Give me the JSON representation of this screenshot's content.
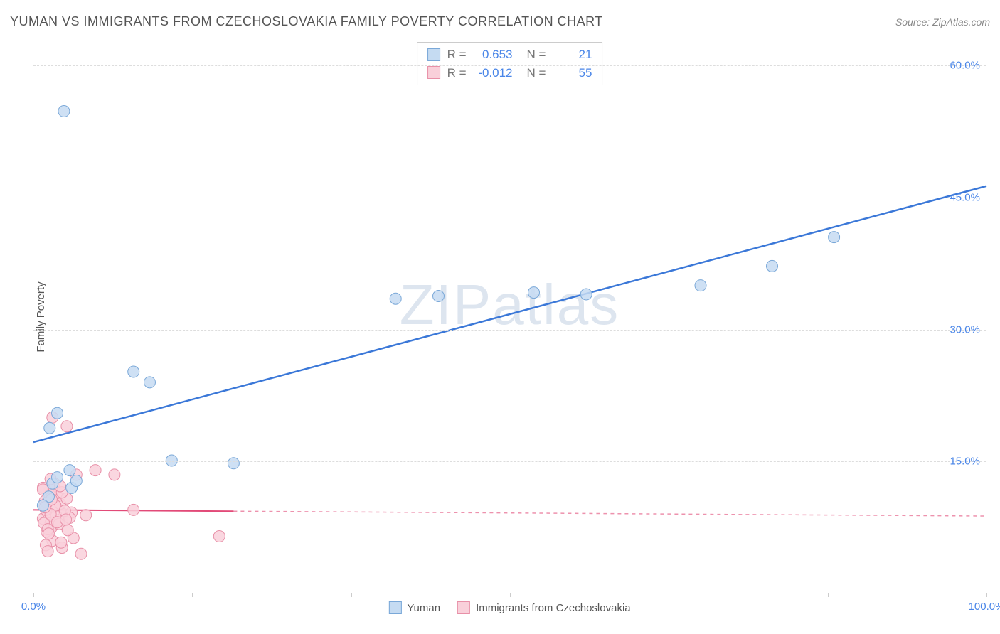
{
  "title": "YUMAN VS IMMIGRANTS FROM CZECHOSLOVAKIA FAMILY POVERTY CORRELATION CHART",
  "source": "Source: ZipAtlas.com",
  "ylabel": "Family Poverty",
  "watermark": {
    "left": "ZIP",
    "right": "atlas"
  },
  "chart": {
    "type": "scatter",
    "xlim": [
      0,
      100
    ],
    "ylim": [
      0,
      63
    ],
    "xtick_positions": [
      0,
      16.67,
      33.33,
      50,
      66.67,
      83.33,
      100
    ],
    "xtick_labels": [
      "0.0%",
      "",
      "",
      "",
      "",
      "",
      "100.0%"
    ],
    "ytick_positions": [
      15,
      30,
      45,
      60
    ],
    "ytick_labels": [
      "15.0%",
      "30.0%",
      "45.0%",
      "60.0%"
    ],
    "background_color": "#ffffff",
    "grid_color": "#dddddd",
    "axis_color": "#cccccc",
    "xlabel_color_left": "#4a86e8",
    "xlabel_color_right": "#4a86e8",
    "ytick_color": "#4a86e8",
    "marker_radius": 8,
    "marker_stroke_width": 1,
    "series": [
      {
        "name": "Yuman",
        "color_fill": "#c5dbf2",
        "color_stroke": "#7aa8d8",
        "line_color": "#3b78d8",
        "line_width": 2.5,
        "line_dash": "none",
        "r_value": "0.653",
        "n_value": "21",
        "trend": {
          "x1": 0,
          "y1": 17.2,
          "x2": 100,
          "y2": 46.3
        },
        "solid_trend_xmax": 100,
        "points": [
          [
            3.2,
            54.8
          ],
          [
            1.7,
            18.8
          ],
          [
            2.5,
            20.5
          ],
          [
            10.5,
            25.2
          ],
          [
            12.2,
            24.0
          ],
          [
            2.0,
            12.5
          ],
          [
            4.0,
            12.0
          ],
          [
            4.5,
            12.8
          ],
          [
            1.6,
            11.0
          ],
          [
            1.0,
            10.0
          ],
          [
            14.5,
            15.1
          ],
          [
            21.0,
            14.8
          ],
          [
            38.0,
            33.5
          ],
          [
            42.5,
            33.8
          ],
          [
            52.5,
            34.2
          ],
          [
            58.0,
            34.0
          ],
          [
            70.0,
            35.0
          ],
          [
            77.5,
            37.2
          ],
          [
            84.0,
            40.5
          ],
          [
            2.5,
            13.2
          ],
          [
            3.8,
            14.0
          ]
        ]
      },
      {
        "name": "Immigrants from Czechoslovakia",
        "color_fill": "#f9d0da",
        "color_stroke": "#e890a8",
        "line_color": "#e24a78",
        "line_width": 2,
        "line_dash": "5,5",
        "r_value": "-0.012",
        "n_value": "55",
        "trend": {
          "x1": 0,
          "y1": 9.5,
          "x2": 100,
          "y2": 8.8
        },
        "solid_trend_xmax": 21,
        "points": [
          [
            1.0,
            8.5
          ],
          [
            1.5,
            9.2
          ],
          [
            2.0,
            7.8
          ],
          [
            1.2,
            10.5
          ],
          [
            2.5,
            11.0
          ],
          [
            1.8,
            8.0
          ],
          [
            2.2,
            9.8
          ],
          [
            3.0,
            8.2
          ],
          [
            1.4,
            7.0
          ],
          [
            2.8,
            10.2
          ],
          [
            1.6,
            11.5
          ],
          [
            2.0,
            20.0
          ],
          [
            3.2,
            9.0
          ],
          [
            1.0,
            12.0
          ],
          [
            2.4,
            8.8
          ],
          [
            1.9,
            7.5
          ],
          [
            3.5,
            10.8
          ],
          [
            1.3,
            9.5
          ],
          [
            2.6,
            8.3
          ],
          [
            1.7,
            11.2
          ],
          [
            4.0,
            9.2
          ],
          [
            1.1,
            8.0
          ],
          [
            2.3,
            10.0
          ],
          [
            1.5,
            7.3
          ],
          [
            3.8,
            8.6
          ],
          [
            2.1,
            11.8
          ],
          [
            1.8,
            9.0
          ],
          [
            4.5,
            13.5
          ],
          [
            1.4,
            10.3
          ],
          [
            2.7,
            7.9
          ],
          [
            3.5,
            19.0
          ],
          [
            1.2,
            9.8
          ],
          [
            2.5,
            8.1
          ],
          [
            1.9,
            10.7
          ],
          [
            3.3,
            9.4
          ],
          [
            5.5,
            8.9
          ],
          [
            6.5,
            14.0
          ],
          [
            8.5,
            13.5
          ],
          [
            10.5,
            9.5
          ],
          [
            19.5,
            6.5
          ],
          [
            2.0,
            6.0
          ],
          [
            3.0,
            5.2
          ],
          [
            4.2,
            6.3
          ],
          [
            1.6,
            6.8
          ],
          [
            2.9,
            5.8
          ],
          [
            1.3,
            5.5
          ],
          [
            3.6,
            7.2
          ],
          [
            5.0,
            4.5
          ],
          [
            2.2,
            12.5
          ],
          [
            1.8,
            13.0
          ],
          [
            3.0,
            11.5
          ],
          [
            1.5,
            4.8
          ],
          [
            2.8,
            12.2
          ],
          [
            1.0,
            11.8
          ],
          [
            3.4,
            8.4
          ]
        ]
      }
    ]
  },
  "stats_labels": {
    "r": "R =",
    "n": "N ="
  },
  "legend": {
    "items": [
      {
        "label": "Yuman",
        "fill": "#c5dbf2",
        "stroke": "#7aa8d8"
      },
      {
        "label": "Immigrants from Czechoslovakia",
        "fill": "#f9d0da",
        "stroke": "#e890a8"
      }
    ]
  }
}
